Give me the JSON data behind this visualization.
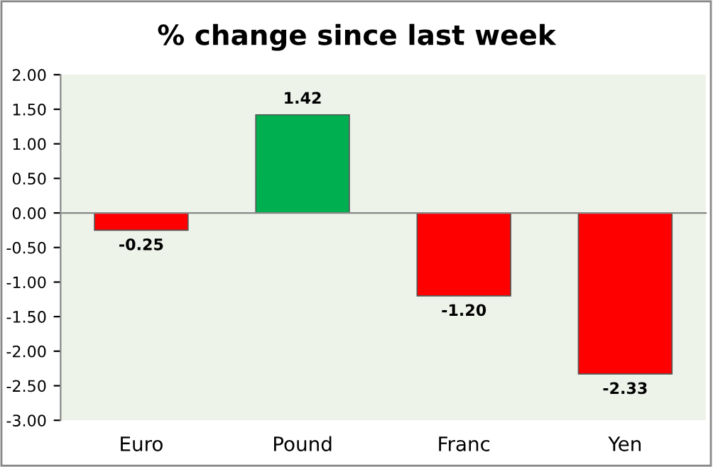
{
  "chart_data": {
    "type": "bar",
    "title": "% change since last week",
    "categories": [
      "Euro",
      "Pound",
      "Franc",
      "Yen"
    ],
    "values": [
      -0.25,
      1.42,
      -1.2,
      -2.33
    ],
    "colors": [
      "#ff0000",
      "#00b050",
      "#ff0000",
      "#ff0000"
    ],
    "value_labels": [
      "-0.25",
      "1.42",
      "-1.20",
      "-2.33"
    ],
    "ylim": [
      -3,
      2
    ],
    "yticks": [
      {
        "value": -3,
        "label": "-3.00"
      },
      {
        "value": -2.5,
        "label": "-2.50"
      },
      {
        "value": -2,
        "label": "-2.00"
      },
      {
        "value": -1.5,
        "label": "-1.50"
      },
      {
        "value": -1,
        "label": "-1.00"
      },
      {
        "value": -0.5,
        "label": "-0.50"
      },
      {
        "value": 0,
        "label": "0.00"
      },
      {
        "value": 0.5,
        "label": "0.50"
      },
      {
        "value": 1,
        "label": "1.00"
      },
      {
        "value": 1.5,
        "label": "1.50"
      },
      {
        "value": 2,
        "label": "2.00"
      }
    ],
    "legend": false
  }
}
